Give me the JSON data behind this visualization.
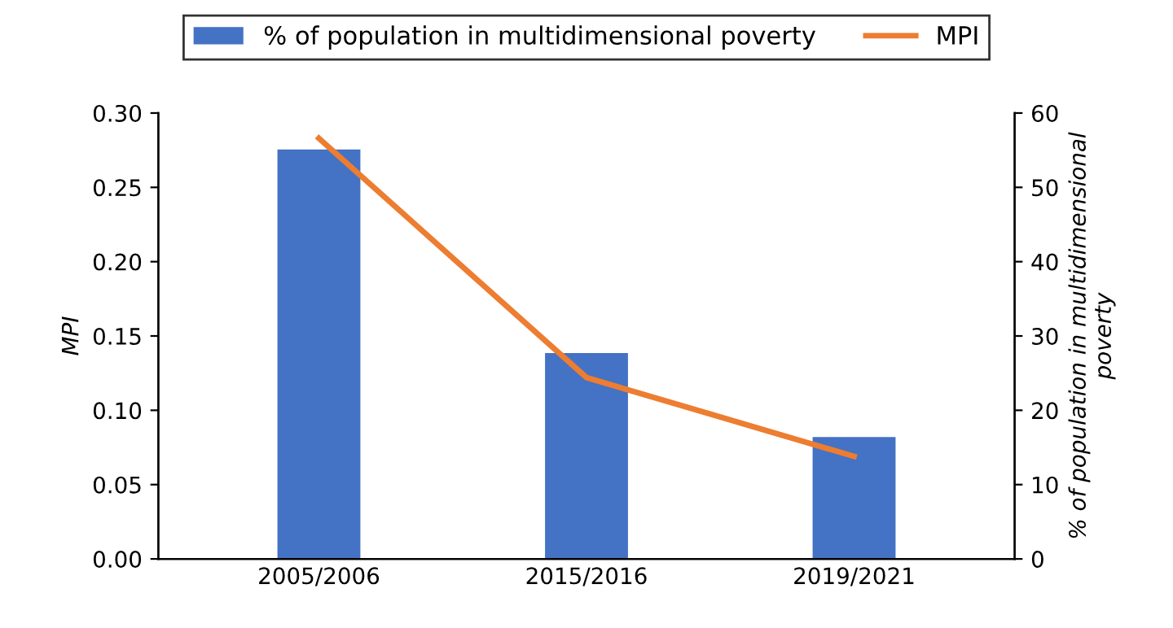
{
  "chart_data": {
    "type": "bar",
    "categories": [
      "2005/2006",
      "2015/2016",
      "2019/2021"
    ],
    "series": [
      {
        "name": "% of population in multidimensional poverty",
        "color": "#4472c4",
        "axis": "y2",
        "values": [
          55.1,
          27.7,
          16.4
        ]
      },
      {
        "name": "MPI",
        "type": "line",
        "color": "#ed7d31",
        "values": [
          0.283,
          0.122,
          0.069
        ]
      }
    ],
    "ylabel": "MPI",
    "y2label": "% of population in multidimensional\npoverty",
    "ylim": [
      0,
      0.3
    ],
    "yticks": [
      {
        "value": 0,
        "label": "0.00"
      },
      {
        "value": 0.05,
        "label": "0.05"
      },
      {
        "value": 0.1,
        "label": "0.10"
      },
      {
        "value": 0.15,
        "label": "0.15"
      },
      {
        "value": 0.2,
        "label": "0.20"
      },
      {
        "value": 0.25,
        "label": "0.25"
      },
      {
        "value": 0.3,
        "label": "0.30"
      }
    ],
    "y2lim": [
      0,
      60
    ],
    "y2ticks": [
      0,
      10,
      20,
      30,
      40,
      50,
      60
    ],
    "legend": "top",
    "grid": false,
    "marker": "none",
    "line_style": "solid"
  }
}
